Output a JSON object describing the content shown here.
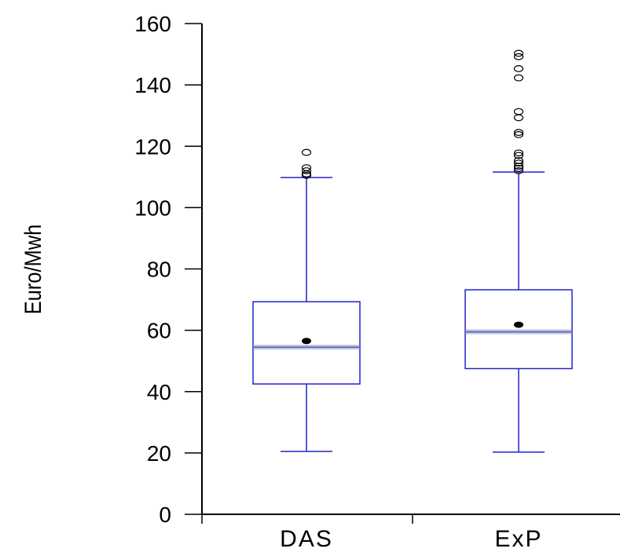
{
  "chart_data": {
    "type": "boxplot",
    "ylabel": "Euro/Mwh",
    "xlabel": "",
    "title": "",
    "ylim": [
      0,
      160
    ],
    "yticks": [
      0,
      20,
      40,
      60,
      80,
      100,
      120,
      140,
      160
    ],
    "categories": [
      "DAS",
      "ExP"
    ],
    "grid": false,
    "legend": "none",
    "colors": {
      "box": "#2222cc",
      "median": "#8a8fcf",
      "mean": "#000000",
      "axis": "#000000"
    },
    "series": [
      {
        "category": "DAS",
        "whisker_low": 20.5,
        "q1": 42.5,
        "median": 54.5,
        "q3": 69.3,
        "whisker_high": 109.8,
        "mean": 56.5,
        "outliers": [
          110.5,
          111.0,
          112.0,
          113.0,
          118.0
        ]
      },
      {
        "category": "ExP",
        "whisker_low": 20.3,
        "q1": 47.5,
        "median": 59.5,
        "q3": 73.2,
        "whisker_high": 111.6,
        "mean": 61.8,
        "outliers": [
          112.0,
          112.8,
          113.5,
          114.5,
          115.3,
          117.0,
          117.8,
          123.8,
          124.5,
          129.3,
          131.3,
          142.3,
          145.3,
          149.2,
          150.3
        ]
      }
    ]
  }
}
